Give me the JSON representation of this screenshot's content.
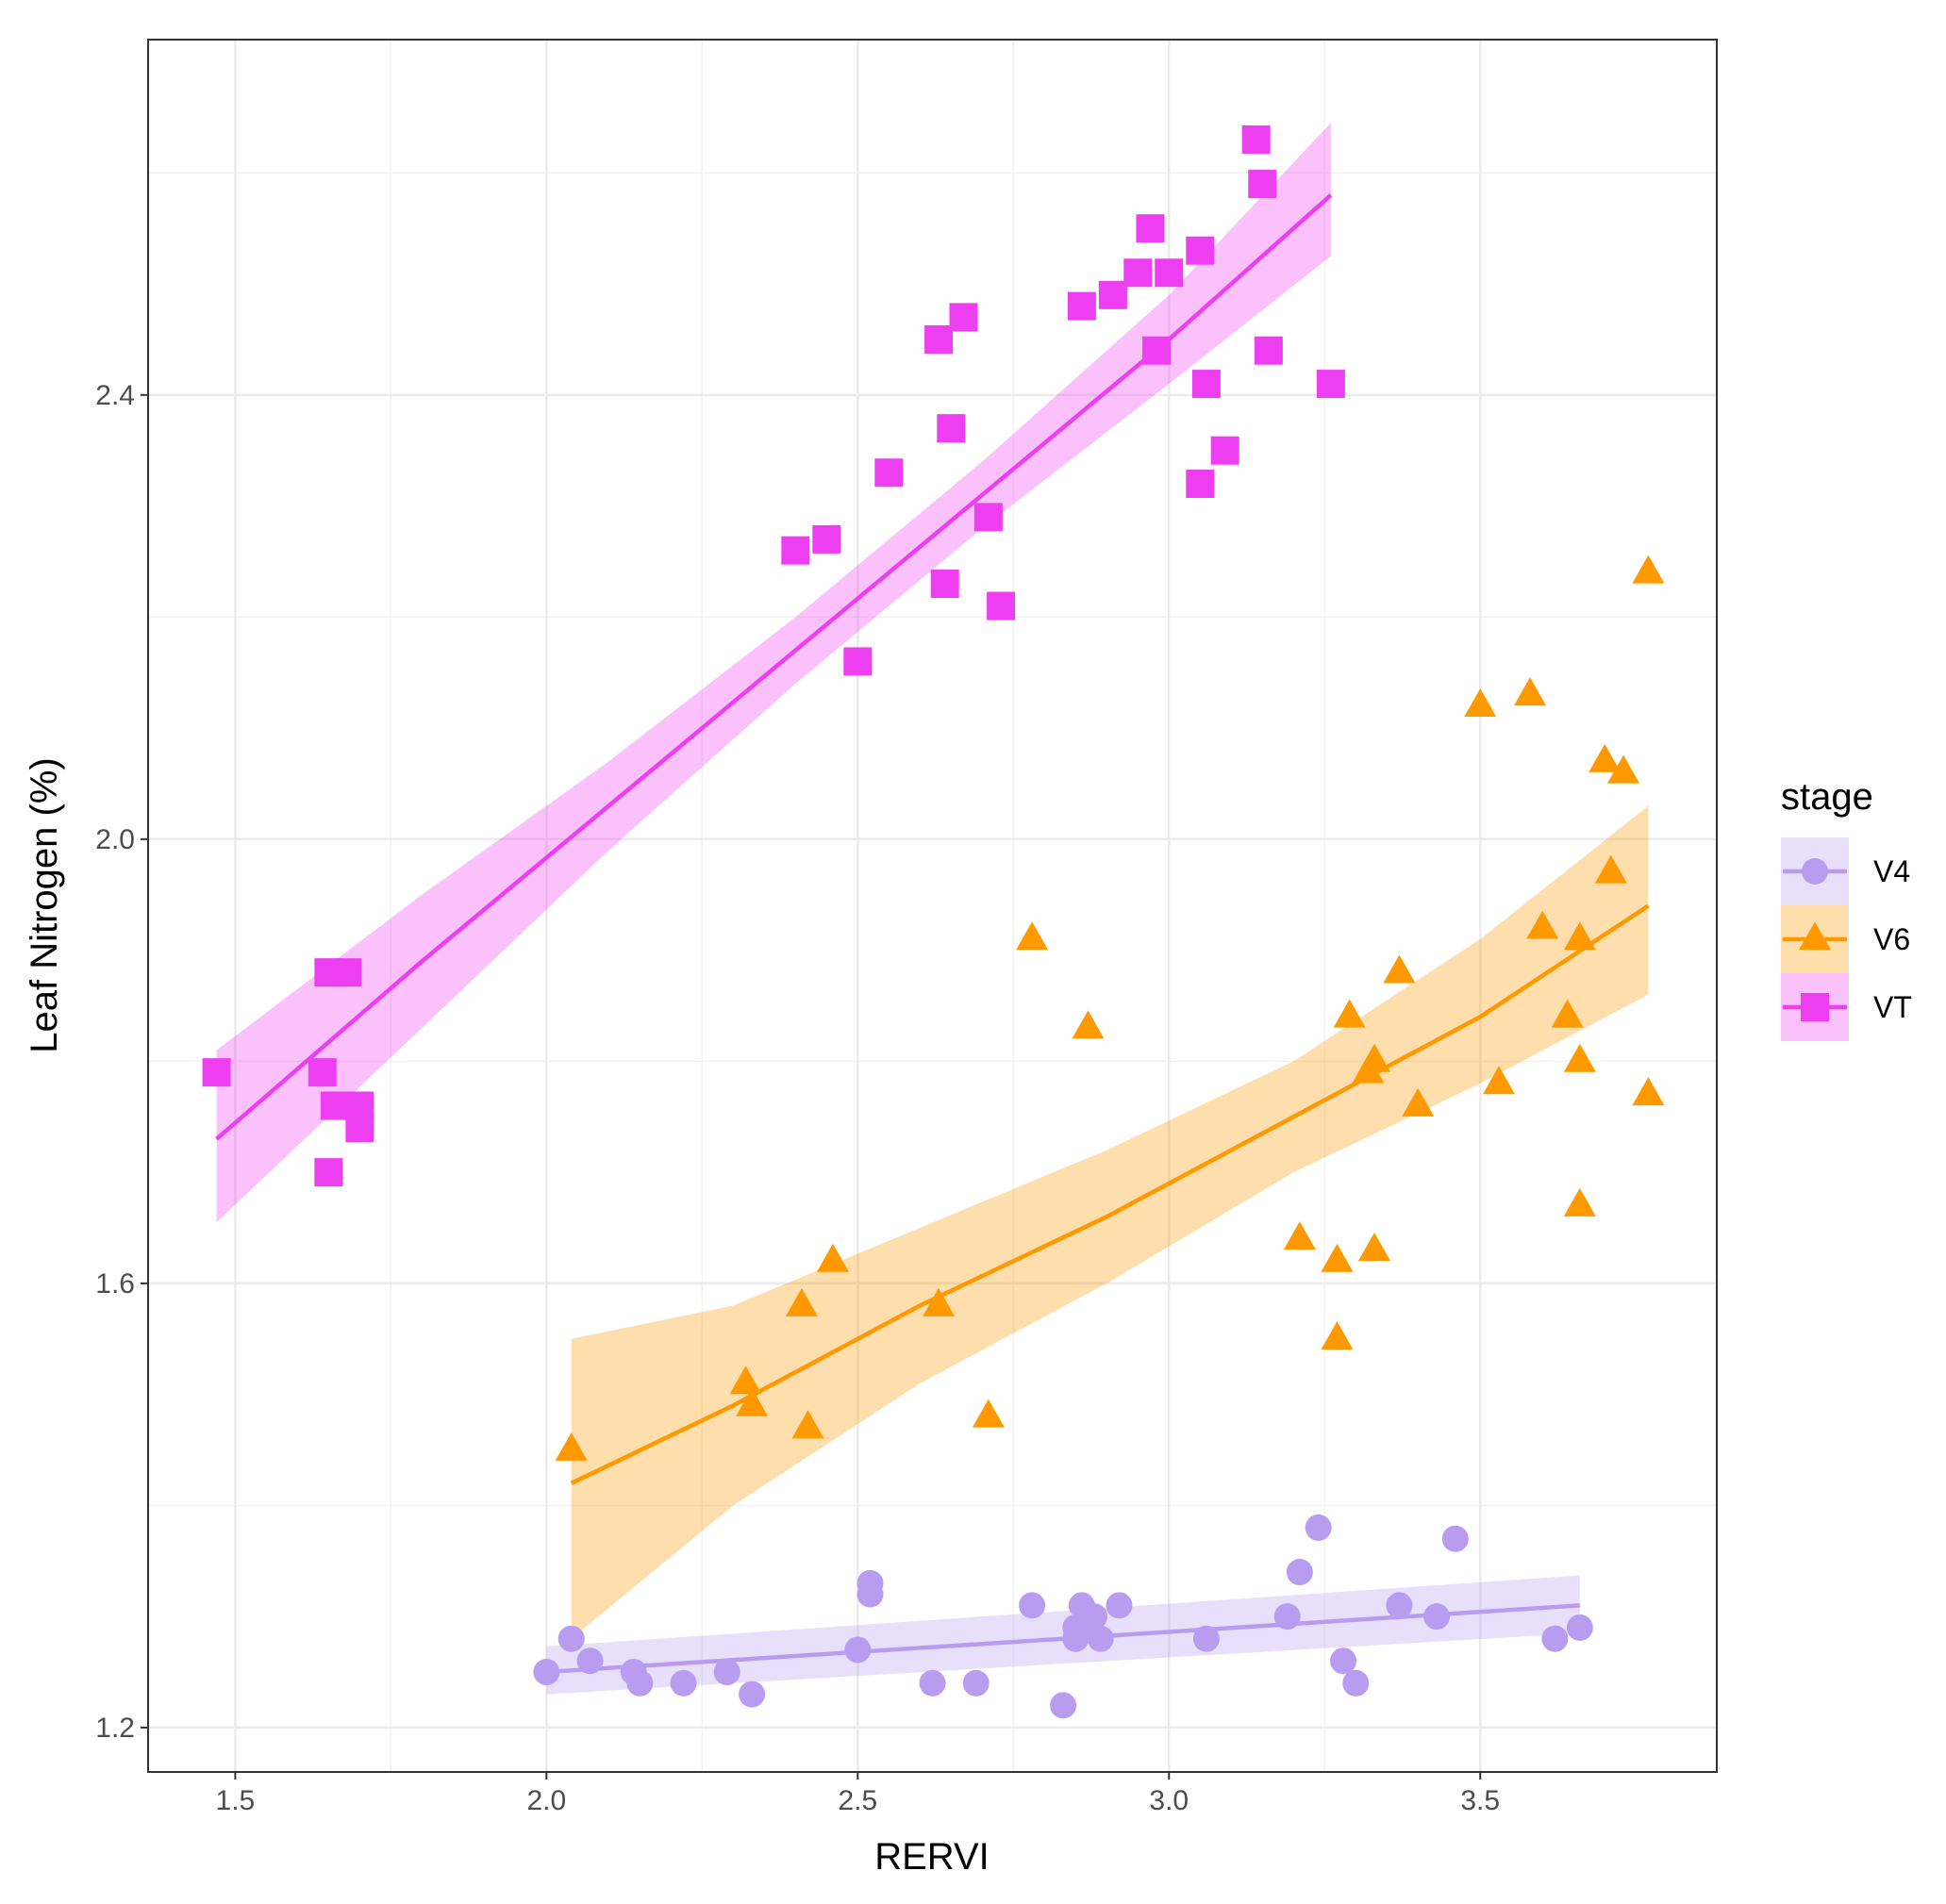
{
  "chart_data": {
    "type": "scatter",
    "title": "",
    "xlabel": "RERVI",
    "ylabel": "Leaf Nitrogen (%)",
    "xlim": [
      1.36,
      3.88
    ],
    "ylim": [
      1.16,
      2.72
    ],
    "x_ticks": [
      1.5,
      2.0,
      2.5,
      3.0,
      3.5
    ],
    "x_tick_labels": [
      "1.5",
      "2.0",
      "2.5",
      "3.0",
      "3.5"
    ],
    "y_ticks": [
      1.2,
      1.6,
      2.0,
      2.4
    ],
    "y_tick_labels": [
      "1.2",
      "1.6",
      "2.0",
      "2.4"
    ],
    "grid": true,
    "legend": {
      "title": "stage",
      "position": "right"
    },
    "series": [
      {
        "name": "V4",
        "color": "#b79cf0",
        "marker": "circle",
        "points": [
          [
            2.0,
            1.25
          ],
          [
            2.04,
            1.28
          ],
          [
            2.07,
            1.26
          ],
          [
            2.14,
            1.25
          ],
          [
            2.15,
            1.24
          ],
          [
            2.22,
            1.24
          ],
          [
            2.29,
            1.25
          ],
          [
            2.33,
            1.23
          ],
          [
            2.5,
            1.27
          ],
          [
            2.52,
            1.33
          ],
          [
            2.52,
            1.32
          ],
          [
            2.62,
            1.24
          ],
          [
            2.69,
            1.24
          ],
          [
            2.78,
            1.31
          ],
          [
            2.83,
            1.22
          ],
          [
            2.85,
            1.28
          ],
          [
            2.85,
            1.29
          ],
          [
            2.86,
            1.31
          ],
          [
            2.87,
            1.29
          ],
          [
            2.88,
            1.3
          ],
          [
            2.89,
            1.28
          ],
          [
            2.92,
            1.31
          ],
          [
            3.06,
            1.28
          ],
          [
            3.19,
            1.3
          ],
          [
            3.21,
            1.34
          ],
          [
            3.24,
            1.38
          ],
          [
            3.28,
            1.26
          ],
          [
            3.3,
            1.24
          ],
          [
            3.37,
            1.31
          ],
          [
            3.43,
            1.3
          ],
          [
            3.46,
            1.37
          ],
          [
            3.62,
            1.28
          ],
          [
            3.66,
            1.29
          ]
        ],
        "fit": {
          "x": [
            2.0,
            3.66
          ],
          "y": [
            1.25,
            1.31
          ],
          "lower": [
            1.23,
            1.285
          ],
          "upper": [
            1.273,
            1.337
          ]
        }
      },
      {
        "name": "V6",
        "color": "#ff9900",
        "marker": "triangle",
        "points": [
          [
            2.04,
            1.45
          ],
          [
            2.32,
            1.51
          ],
          [
            2.33,
            1.49
          ],
          [
            2.41,
            1.58
          ],
          [
            2.42,
            1.47
          ],
          [
            2.46,
            1.62
          ],
          [
            2.63,
            1.58
          ],
          [
            2.71,
            1.48
          ],
          [
            2.78,
            1.91
          ],
          [
            2.87,
            1.83
          ],
          [
            3.21,
            1.64
          ],
          [
            3.27,
            1.55
          ],
          [
            3.27,
            1.62
          ],
          [
            3.29,
            1.84
          ],
          [
            3.32,
            1.79
          ],
          [
            3.33,
            1.63
          ],
          [
            3.33,
            1.8
          ],
          [
            3.37,
            1.88
          ],
          [
            3.4,
            1.76
          ],
          [
            3.5,
            2.12
          ],
          [
            3.53,
            1.78
          ],
          [
            3.58,
            2.13
          ],
          [
            3.6,
            1.92
          ],
          [
            3.64,
            1.84
          ],
          [
            3.66,
            1.67
          ],
          [
            3.66,
            1.8
          ],
          [
            3.66,
            1.91
          ],
          [
            3.7,
            2.07
          ],
          [
            3.71,
            1.97
          ],
          [
            3.73,
            2.06
          ],
          [
            3.77,
            2.24
          ],
          [
            3.77,
            1.77
          ]
        ],
        "fit": {
          "x": [
            2.04,
            2.3,
            2.6,
            2.9,
            3.2,
            3.5,
            3.77
          ],
          "y": [
            1.42,
            1.49,
            1.58,
            1.66,
            1.75,
            1.84,
            1.94
          ],
          "lower": [
            1.28,
            1.4,
            1.51,
            1.6,
            1.7,
            1.78,
            1.86
          ],
          "upper": [
            1.55,
            1.58,
            1.65,
            1.72,
            1.8,
            1.91,
            2.03
          ]
        }
      },
      {
        "name": "VT",
        "color": "#ee3ef2",
        "marker": "square",
        "points": [
          [
            1.47,
            1.79
          ],
          [
            1.64,
            1.79
          ],
          [
            1.65,
            1.7
          ],
          [
            1.65,
            1.88
          ],
          [
            1.66,
            1.76
          ],
          [
            1.67,
            1.76
          ],
          [
            1.68,
            1.88
          ],
          [
            1.7,
            1.74
          ],
          [
            1.7,
            1.76
          ],
          [
            2.4,
            2.26
          ],
          [
            2.45,
            2.27
          ],
          [
            2.5,
            2.16
          ],
          [
            2.55,
            2.33
          ],
          [
            2.63,
            2.45
          ],
          [
            2.64,
            2.23
          ],
          [
            2.65,
            2.37
          ],
          [
            2.67,
            2.47
          ],
          [
            2.71,
            2.29
          ],
          [
            2.73,
            2.21
          ],
          [
            2.86,
            2.48
          ],
          [
            2.91,
            2.49
          ],
          [
            2.95,
            2.51
          ],
          [
            2.97,
            2.55
          ],
          [
            2.98,
            2.44
          ],
          [
            3.0,
            2.51
          ],
          [
            3.05,
            2.32
          ],
          [
            3.05,
            2.53
          ],
          [
            3.06,
            2.41
          ],
          [
            3.09,
            2.35
          ],
          [
            3.14,
            2.63
          ],
          [
            3.15,
            2.59
          ],
          [
            3.16,
            2.44
          ],
          [
            3.26,
            2.41
          ]
        ],
        "fit": {
          "x": [
            1.47,
            1.8,
            2.1,
            2.4,
            2.7,
            3.0,
            3.26
          ],
          "y": [
            1.73,
            1.89,
            2.03,
            2.17,
            2.31,
            2.45,
            2.58
          ],
          "lower": [
            1.655,
            1.83,
            1.99,
            2.14,
            2.28,
            2.41,
            2.525
          ],
          "upper": [
            1.81,
            1.95,
            2.07,
            2.2,
            2.34,
            2.49,
            2.645
          ]
        }
      }
    ]
  }
}
